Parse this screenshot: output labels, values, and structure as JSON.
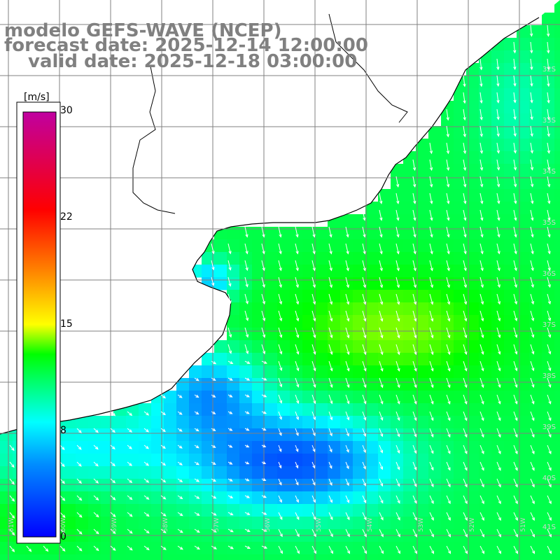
{
  "title": {
    "line1": "modelo GEFS-WAVE (NCEP)",
    "line2": "forecast date: 2025-12-14 12:00:00",
    "line3": "valid date: 2025-12-18 03:00:00"
  },
  "colorbar": {
    "unit": "[m/s]",
    "ticks": [
      {
        "value": 30,
        "label": "30"
      },
      {
        "value": 22,
        "label": "22"
      },
      {
        "value": 15,
        "label": "15"
      },
      {
        "value": 8,
        "label": "8"
      },
      {
        "value": 0,
        "label": "0"
      }
    ],
    "range": [
      0,
      30
    ],
    "colors": [
      "#0000ff",
      "#00b4ff",
      "#00ffff",
      "#00ff00",
      "#ffff00",
      "#ff8000",
      "#ff0000",
      "#c000a0"
    ]
  },
  "map": {
    "lat_labels": [
      "32S",
      "33S",
      "34S",
      "35S",
      "36S",
      "37S",
      "38S",
      "39S",
      "40S",
      "41S"
    ],
    "lon_labels": [
      "61W",
      "60W",
      "59W",
      "58W",
      "57W",
      "56W",
      "55W",
      "54W",
      "53W",
      "52W",
      "51W"
    ],
    "arrow_color": "#ffffff",
    "grid_color": "#808080",
    "coast_color": "#000000"
  }
}
